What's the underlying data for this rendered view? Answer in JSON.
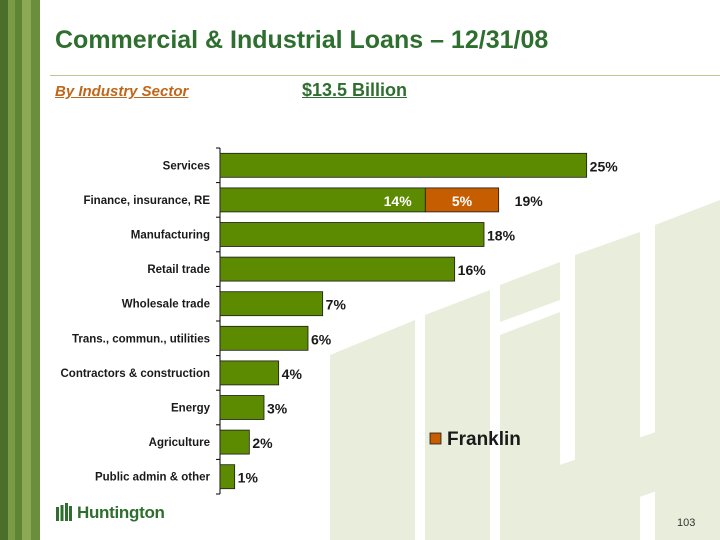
{
  "slide": {
    "title": "Commercial & Industrial Loans – 12/31/08",
    "subtitle": "By Industry Sector",
    "total": "$13.5 Billion",
    "page_number": "103"
  },
  "logo": {
    "text": "Huntington"
  },
  "colors": {
    "primary": "#5c8a00",
    "franklin": "#c65d00",
    "title": "#2e6e2e",
    "subtitle": "#c0661a"
  },
  "chart_data": {
    "type": "bar",
    "orientation": "horizontal",
    "stacked": true,
    "categories": [
      "Services",
      "Finance, insurance, RE",
      "Manufacturing",
      "Retail trade",
      "Wholesale trade",
      "Trans., commun., utilities",
      "Contractors & construction",
      "Energy",
      "Agriculture",
      "Public admin & other"
    ],
    "series": [
      {
        "values": [
          25,
          14,
          18,
          16,
          7,
          6,
          4,
          3,
          2,
          1
        ],
        "color": "#5c8a00"
      },
      {
        "name": "Franklin",
        "values": [
          0,
          5,
          0,
          0,
          0,
          0,
          0,
          0,
          0,
          0
        ],
        "color": "#c65d00"
      }
    ],
    "bar_labels": [
      "25%",
      "19%",
      "18%",
      "16%",
      "7%",
      "6%",
      "4%",
      "3%",
      "2%",
      "1%"
    ],
    "inner_labels": [
      {
        "category": "Finance, insurance, RE",
        "series": 0,
        "text": "14%"
      },
      {
        "category": "Finance, insurance, RE",
        "series": 1,
        "text": "5%"
      }
    ],
    "xlim": [
      0,
      27
    ],
    "legend": {
      "entries": [
        "Franklin"
      ],
      "position": "lower-right"
    },
    "grid": false
  }
}
